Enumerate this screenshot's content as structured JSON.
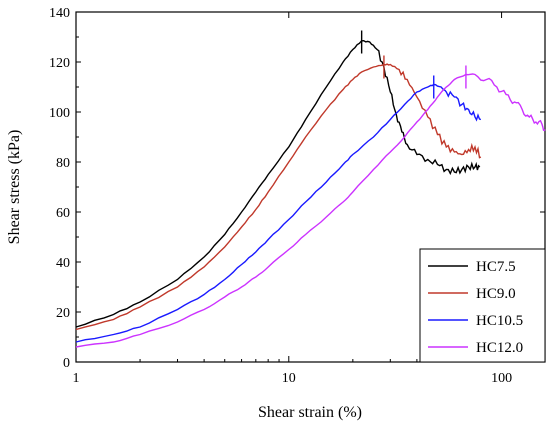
{
  "chart_data": {
    "type": "line",
    "xlabel": "Shear strain (%)",
    "ylabel": "Shear stress (kPa)",
    "x_scale": "log",
    "xlim": [
      1,
      160
    ],
    "ylim": [
      0,
      140
    ],
    "x_ticks": [
      1,
      10,
      100
    ],
    "x_tick_labels": [
      "1",
      "10",
      "100"
    ],
    "y_ticks": [
      0,
      20,
      40,
      60,
      80,
      100,
      120,
      140
    ],
    "y_tick_labels": [
      "0",
      "20",
      "40",
      "60",
      "80",
      "100",
      "120",
      "140"
    ],
    "grid": false,
    "legend_position": "bottom-right",
    "series": [
      {
        "name": "HC7.5",
        "color": "#000000",
        "peak_marker": {
          "x": 22,
          "y": 129
        },
        "points": [
          [
            1,
            14
          ],
          [
            1.5,
            19
          ],
          [
            2,
            24
          ],
          [
            3,
            33
          ],
          [
            4,
            42
          ],
          [
            5,
            51
          ],
          [
            6,
            60
          ],
          [
            7,
            68
          ],
          [
            8,
            75
          ],
          [
            10,
            86
          ],
          [
            12,
            97
          ],
          [
            15,
            110
          ],
          [
            18,
            120
          ],
          [
            20,
            125
          ],
          [
            22,
            128.5
          ],
          [
            24,
            128
          ],
          [
            26,
            125
          ],
          [
            28,
            118
          ],
          [
            30,
            108
          ],
          [
            32,
            99
          ],
          [
            34,
            92
          ],
          [
            36,
            87
          ],
          [
            40,
            83
          ],
          [
            45,
            81
          ],
          [
            50,
            79
          ],
          [
            55,
            77
          ],
          [
            60,
            76
          ],
          [
            65,
            77
          ],
          [
            70,
            78
          ],
          [
            75,
            78
          ],
          [
            79,
            78
          ]
        ]
      },
      {
        "name": "HC9.0",
        "color": "#c0392b",
        "peak_marker": {
          "x": 28,
          "y": 119
        },
        "points": [
          [
            1,
            13
          ],
          [
            1.5,
            17
          ],
          [
            2,
            22
          ],
          [
            3,
            30
          ],
          [
            4,
            38
          ],
          [
            5,
            46
          ],
          [
            6,
            54
          ],
          [
            7,
            61
          ],
          [
            8,
            68
          ],
          [
            10,
            80
          ],
          [
            12,
            90
          ],
          [
            15,
            101
          ],
          [
            18,
            109
          ],
          [
            20,
            113
          ],
          [
            22,
            116
          ],
          [
            25,
            118
          ],
          [
            28,
            119
          ],
          [
            30,
            119
          ],
          [
            33,
            117
          ],
          [
            36,
            113
          ],
          [
            40,
            106
          ],
          [
            45,
            98
          ],
          [
            50,
            91
          ],
          [
            55,
            86
          ],
          [
            60,
            84
          ],
          [
            65,
            83
          ],
          [
            70,
            85
          ],
          [
            75,
            86
          ],
          [
            80,
            82
          ]
        ]
      },
      {
        "name": "HC10.5",
        "color": "#1a1aff",
        "peak_marker": {
          "x": 48,
          "y": 111
        },
        "points": [
          [
            1,
            8
          ],
          [
            1.5,
            11
          ],
          [
            2,
            14
          ],
          [
            3,
            21
          ],
          [
            4,
            27
          ],
          [
            5,
            33
          ],
          [
            6,
            39
          ],
          [
            7,
            44
          ],
          [
            8,
            49
          ],
          [
            10,
            57
          ],
          [
            12,
            64
          ],
          [
            15,
            72
          ],
          [
            18,
            79
          ],
          [
            20,
            83
          ],
          [
            25,
            90
          ],
          [
            30,
            97
          ],
          [
            35,
            103
          ],
          [
            40,
            108
          ],
          [
            45,
            110
          ],
          [
            48,
            111
          ],
          [
            52,
            110
          ],
          [
            55,
            108
          ],
          [
            60,
            106
          ],
          [
            65,
            103
          ],
          [
            70,
            101
          ],
          [
            75,
            98
          ],
          [
            80,
            97
          ]
        ]
      },
      {
        "name": "HC12.0",
        "color": "#cc33ff",
        "peak_marker": {
          "x": 68,
          "y": 115
        },
        "points": [
          [
            1,
            6
          ],
          [
            1.5,
            8
          ],
          [
            2,
            11
          ],
          [
            3,
            16
          ],
          [
            4,
            21
          ],
          [
            5,
            26
          ],
          [
            6,
            30
          ],
          [
            7,
            34
          ],
          [
            8,
            38
          ],
          [
            10,
            45
          ],
          [
            12,
            51
          ],
          [
            15,
            58
          ],
          [
            18,
            64
          ],
          [
            20,
            68
          ],
          [
            25,
            77
          ],
          [
            30,
            84
          ],
          [
            35,
            90
          ],
          [
            40,
            96
          ],
          [
            45,
            101
          ],
          [
            50,
            106
          ],
          [
            55,
            110
          ],
          [
            60,
            113
          ],
          [
            68,
            115
          ],
          [
            75,
            115
          ],
          [
            85,
            113
          ],
          [
            95,
            110
          ],
          [
            105,
            107
          ],
          [
            115,
            104
          ],
          [
            125,
            101
          ],
          [
            135,
            98
          ],
          [
            145,
            96
          ],
          [
            155,
            95
          ],
          [
            160,
            93
          ]
        ]
      }
    ]
  }
}
